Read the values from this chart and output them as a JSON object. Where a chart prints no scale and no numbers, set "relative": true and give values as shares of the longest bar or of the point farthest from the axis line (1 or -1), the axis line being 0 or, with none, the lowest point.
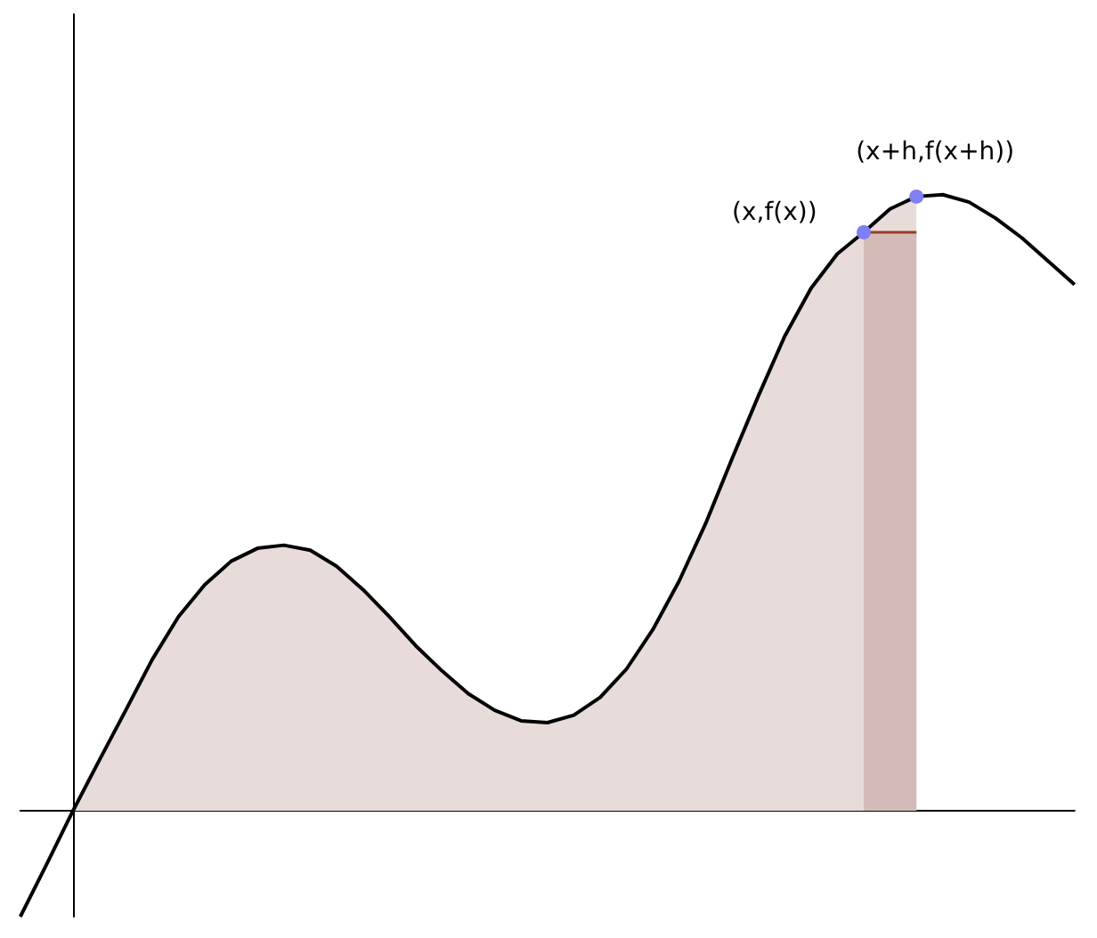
{
  "chart_data": {
    "type": "line",
    "relative": true,
    "categories": [
      null,
      null,
      null,
      null,
      null,
      null,
      null,
      null,
      null,
      null,
      null,
      null,
      null,
      null,
      null,
      null,
      null,
      null,
      null,
      null,
      null,
      null,
      null,
      null,
      null,
      null,
      null,
      null,
      null,
      null,
      null,
      null,
      null,
      null,
      null,
      null,
      null,
      null,
      null,
      null,
      null
    ],
    "series": [
      {
        "type": "area",
        "color": "#e8dcda",
        "values": [
          null,
          null,
          0,
          0.082,
          0.163,
          0.245,
          0.315,
          0.367,
          0.405,
          0.426,
          0.431,
          0.423,
          0.397,
          0.359,
          0.315,
          0.268,
          0.227,
          0.19,
          0.163,
          0.146,
          0.143,
          0.155,
          0.184,
          0.23,
          0.294,
          0.373,
          0.466,
          0.571,
          0.673,
          0.77,
          0.848,
          0.904,
          0.939,
          0.977,
          0.997,
          null,
          null,
          null,
          null,
          null,
          null
        ]
      },
      {
        "type": "area",
        "color": "#d3bcb7",
        "values": [
          null,
          null,
          null,
          null,
          null,
          null,
          null,
          null,
          null,
          null,
          null,
          null,
          null,
          null,
          null,
          null,
          null,
          null,
          null,
          null,
          null,
          null,
          null,
          null,
          null,
          null,
          null,
          null,
          null,
          null,
          null,
          null,
          0.939,
          0.939,
          0.939,
          null,
          null,
          null,
          null,
          null,
          null
        ]
      },
      {
        "color": "#000000",
        "values": [
          -0.172,
          -0.087,
          0,
          0.082,
          0.163,
          0.245,
          0.315,
          0.367,
          0.405,
          0.426,
          0.431,
          0.423,
          0.397,
          0.359,
          0.315,
          0.268,
          0.227,
          0.19,
          0.163,
          0.146,
          0.143,
          0.155,
          0.184,
          0.23,
          0.294,
          0.373,
          0.466,
          0.571,
          0.673,
          0.77,
          0.848,
          0.904,
          0.939,
          0.977,
          0.997,
          1,
          0.988,
          0.962,
          0.93,
          0.892,
          0.854
        ]
      },
      {
        "name": "(x,f(x))",
        "color": "#7f7ff5",
        "marker": "circle",
        "values": [
          null,
          null,
          null,
          null,
          null,
          null,
          null,
          null,
          null,
          null,
          null,
          null,
          null,
          null,
          null,
          null,
          null,
          null,
          null,
          null,
          null,
          null,
          null,
          null,
          null,
          null,
          null,
          null,
          null,
          null,
          null,
          null,
          0.939,
          null,
          null,
          null,
          null,
          null,
          null,
          null,
          null
        ]
      },
      {
        "name": "(x+h,f(x+h))",
        "color": "#7f7ff5",
        "marker": "circle",
        "values": [
          null,
          null,
          null,
          null,
          null,
          null,
          null,
          null,
          null,
          null,
          null,
          null,
          null,
          null,
          null,
          null,
          null,
          null,
          null,
          null,
          null,
          null,
          null,
          null,
          null,
          null,
          null,
          null,
          null,
          null,
          null,
          null,
          null,
          null,
          0.997,
          null,
          null,
          null,
          null,
          null,
          null
        ]
      }
    ]
  }
}
